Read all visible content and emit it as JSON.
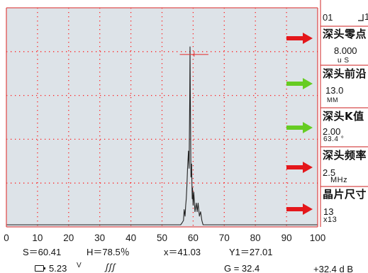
{
  "header": {
    "channel": "01",
    "corner_label": "1"
  },
  "menu": [
    {
      "title": "深头零点",
      "value": "8.000",
      "unit": "u S",
      "arrow": "red"
    },
    {
      "title": "深头前沿",
      "value": "13.0",
      "unit": "MM",
      "arrow": "green"
    },
    {
      "title": "深头K值",
      "value": "2.00",
      "unit": "63.4 °",
      "arrow": "green"
    },
    {
      "title": "深头频率",
      "value": "2.5",
      "unit": "MHz",
      "arrow": "red"
    },
    {
      "title": "晶片尺寸",
      "value": "13",
      "unit": "x13",
      "arrow": "red"
    }
  ],
  "chart_data": {
    "type": "line",
    "title": "",
    "xlabel": "",
    "ylabel": "",
    "xlim": [
      0,
      100
    ],
    "ylim": [
      0,
      100
    ],
    "x_ticks": [
      "0",
      "10",
      "20",
      "30",
      "40",
      "50",
      "60",
      "70",
      "80",
      "90",
      "100"
    ],
    "grid": "dotted",
    "series": [
      {
        "x": [
          0,
          56.0,
          56.5,
          56.9,
          57.1,
          57.4,
          57.6,
          57.8,
          58.0,
          58.2,
          58.5,
          58.7,
          58.9,
          59.0,
          59.1,
          59.3,
          59.5,
          59.7,
          59.8,
          60.0,
          60.2,
          60.6,
          61.0,
          61.3,
          61.6,
          62.0,
          62.4,
          62.8,
          63.2,
          100
        ],
        "y": [
          0,
          0,
          1,
          2,
          7,
          4,
          9,
          12,
          18,
          26,
          34,
          26,
          58,
          82,
          60,
          22,
          28,
          12,
          17,
          9,
          15,
          6,
          10,
          6,
          10,
          4,
          6,
          2,
          0,
          0
        ]
      }
    ],
    "gate": {
      "x_start": 55.7,
      "x_end": 64.9,
      "level": 78.5
    }
  },
  "status": {
    "s": "S＝60.41",
    "h": "H＝78.5％",
    "x": "x＝41.03",
    "y1": "Y1＝27.01",
    "battery": "5.23",
    "battery_unit": "V",
    "pulse": "ʃʃʃ",
    "g": "G = 32.4",
    "gain": "+32.4 d B"
  },
  "icons": {
    "battery": "battery-icon",
    "pulse": "pulse-train-icon",
    "arrow": "arrow-right-icon"
  },
  "colors": {
    "plot_bg": "#dde3e8",
    "grid": "#ff2020",
    "arrow_red": "#e4171b",
    "arrow_green": "#66cc22",
    "frame": "#e05050"
  }
}
